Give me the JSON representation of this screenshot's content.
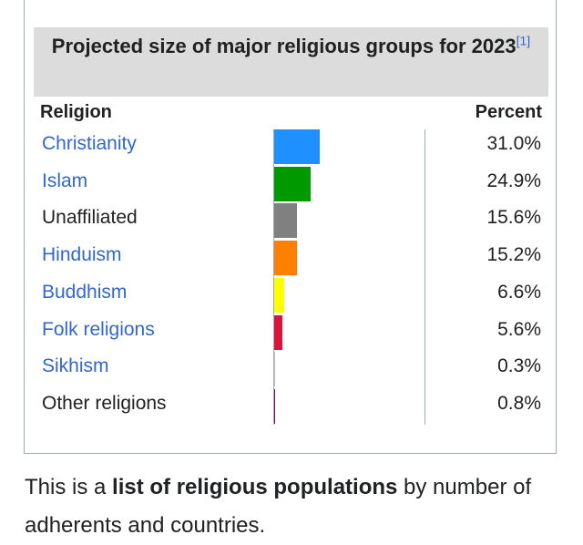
{
  "infobox": {
    "title": "Projected size of major religious groups for 2023",
    "ref": "[1]",
    "col_religion": "Religion",
    "col_percent": "Percent",
    "rows": [
      {
        "name": "Christianity",
        "percent": "31.0%",
        "value": 31.0,
        "color": "#1e90ff",
        "link": true
      },
      {
        "name": "Islam",
        "percent": "24.9%",
        "value": 24.9,
        "color": "#009900",
        "link": true
      },
      {
        "name": "Unaffiliated",
        "percent": "15.6%",
        "value": 15.6,
        "color": "#808080",
        "link": false
      },
      {
        "name": "Hinduism",
        "percent": "15.2%",
        "value": 15.2,
        "color": "#ff8000",
        "link": true
      },
      {
        "name": "Buddhism",
        "percent": "6.6%",
        "value": 6.6,
        "color": "#ffff00",
        "link": true
      },
      {
        "name": "Folk religions",
        "percent": "5.6%",
        "value": 5.6,
        "color": "#dc143c",
        "link": true
      },
      {
        "name": "Sikhism",
        "percent": "0.3%",
        "value": 0.3,
        "color": "#c0c0c0",
        "link": true
      },
      {
        "name": "Other religions",
        "percent": "0.8%",
        "value": 0.8,
        "color": "#800080",
        "link": false
      }
    ]
  },
  "lead": {
    "pre": "This is a ",
    "bold": "list of religious populations",
    "post": " by number of adherents and countries."
  }
}
